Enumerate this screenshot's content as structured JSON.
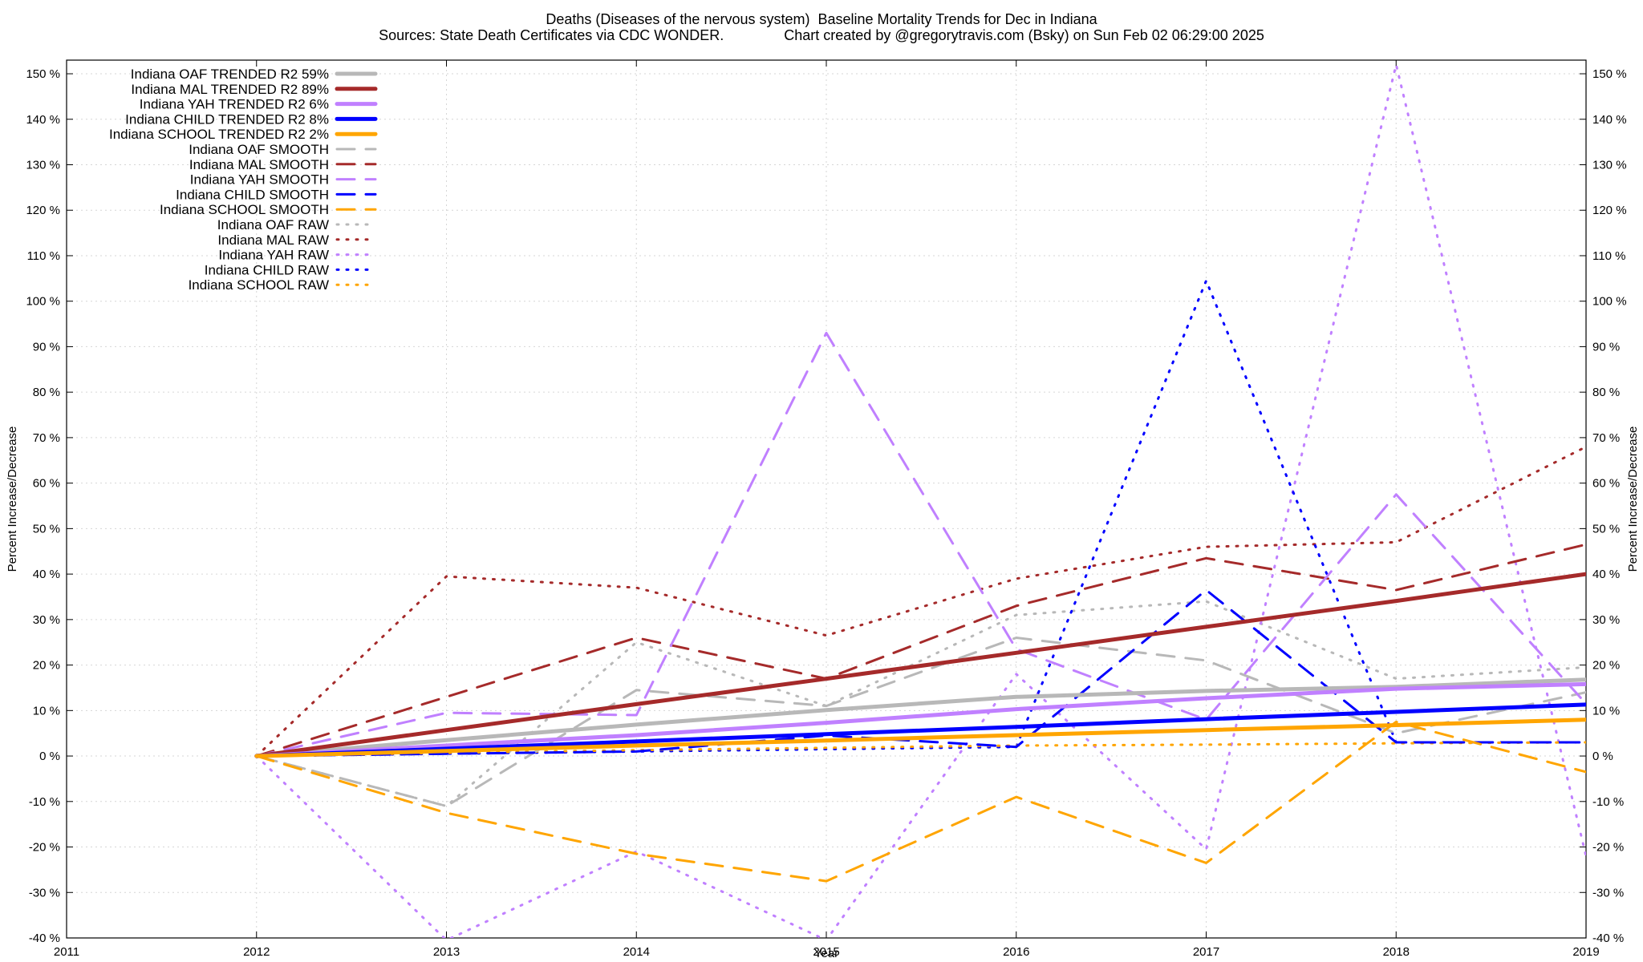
{
  "chart_data": {
    "type": "line",
    "title": "Deaths (Diseases of the nervous system)  Baseline Mortality Trends for Dec in Indiana",
    "subtitle": "Sources: State Death Certificates via CDC WONDER.               Chart created by @gregorytravis.com (Bsky) on Sun Feb 02 06:29:00 2025",
    "xlabel": "Year",
    "ylabel": "Percent Increase/Decrease",
    "xlim": [
      2011,
      2019
    ],
    "ylim": [
      -40,
      153
    ],
    "xticks": [
      "2011",
      "2012",
      "2013",
      "2014",
      "2015",
      "2016",
      "2017",
      "2018",
      "2019"
    ],
    "yticks": [
      "-40 %",
      "-30 %",
      "-20 %",
      "-10 %",
      "0 %",
      "10 %",
      "20 %",
      "30 %",
      "40 %",
      "50 %",
      "60 %",
      "70 %",
      "80 %",
      "90 %",
      "100 %",
      "110 %",
      "120 %",
      "130 %",
      "140 %",
      "150 %"
    ],
    "grid": true,
    "legend_position": "top-left",
    "x": [
      2012,
      2013,
      2014,
      2015,
      2016,
      2017,
      2018,
      2019
    ],
    "series": [
      {
        "name": "Indiana OAF TRENDED R2  59%",
        "style": "solid",
        "color": "#b8b8b8",
        "values": [
          0,
          3.5,
          6.9,
          10.1,
          13.0,
          14.3,
          15.2,
          16.8
        ]
      },
      {
        "name": "Indiana MAL TRENDED R2  89%",
        "style": "solid",
        "color": "#a52a2a",
        "values": [
          0,
          5.7,
          11.4,
          17.0,
          22.7,
          28.4,
          34.1,
          40.0
        ]
      },
      {
        "name": "Indiana YAH TRENDED R2  6%",
        "style": "solid",
        "color": "#c080ff",
        "values": [
          0,
          2.3,
          4.6,
          7.3,
          10.3,
          12.7,
          14.8,
          15.8
        ]
      },
      {
        "name": "Indiana CHILD TRENDED R2  8%",
        "style": "solid",
        "color": "#0000ff",
        "values": [
          0,
          1.6,
          3.2,
          4.8,
          6.4,
          8.1,
          9.7,
          11.3
        ]
      },
      {
        "name": "Indiana SCHOOL TRENDED R2  2%",
        "style": "solid",
        "color": "#ffa500",
        "values": [
          0,
          1.1,
          2.3,
          3.4,
          4.6,
          5.7,
          6.8,
          8.0
        ]
      },
      {
        "name": "Indiana OAF SMOOTH",
        "style": "dash",
        "color": "#b8b8b8",
        "values": [
          0,
          -11,
          14.5,
          11,
          26,
          21,
          5,
          14
        ]
      },
      {
        "name": "Indiana MAL SMOOTH",
        "style": "dash",
        "color": "#a52a2a",
        "values": [
          0,
          13,
          26,
          17,
          33,
          43.5,
          36.5,
          46.5
        ]
      },
      {
        "name": "Indiana YAH SMOOTH",
        "style": "dash",
        "color": "#c080ff",
        "values": [
          0,
          9.5,
          9,
          93,
          23.5,
          8,
          57.5,
          11.5
        ]
      },
      {
        "name": "Indiana CHILD SMOOTH",
        "style": "dash",
        "color": "#0000ff",
        "values": [
          0,
          0.5,
          1,
          4.5,
          2,
          36.5,
          3,
          3
        ]
      },
      {
        "name": "Indiana SCHOOL SMOOTH",
        "style": "dash",
        "color": "#ffa500",
        "values": [
          0,
          -12.5,
          -21.5,
          -27.5,
          -9,
          -23.5,
          7.5,
          -3.5
        ]
      },
      {
        "name": "Indiana OAF RAW",
        "style": "dot",
        "color": "#b8b8b8",
        "values": [
          0,
          -11,
          25,
          11,
          31,
          34,
          17,
          19.5
        ]
      },
      {
        "name": "Indiana MAL RAW",
        "style": "dot",
        "color": "#a52a2a",
        "values": [
          0,
          39.5,
          37,
          26.5,
          39,
          46,
          47,
          68
        ]
      },
      {
        "name": "Indiana YAH RAW",
        "style": "dot",
        "color": "#c080ff",
        "values": [
          0,
          -40.5,
          -21,
          -40.5,
          18,
          -20.5,
          152,
          -22
        ]
      },
      {
        "name": "Indiana CHILD RAW",
        "style": "dot",
        "color": "#0000ff",
        "values": [
          0,
          0.5,
          1,
          1.5,
          2,
          104.5,
          3,
          3
        ]
      },
      {
        "name": "Indiana SCHOOL RAW",
        "style": "dot",
        "color": "#ffa500",
        "values": [
          0,
          0.7,
          1.3,
          1.8,
          2.3,
          2.5,
          2.8,
          3
        ]
      }
    ]
  }
}
